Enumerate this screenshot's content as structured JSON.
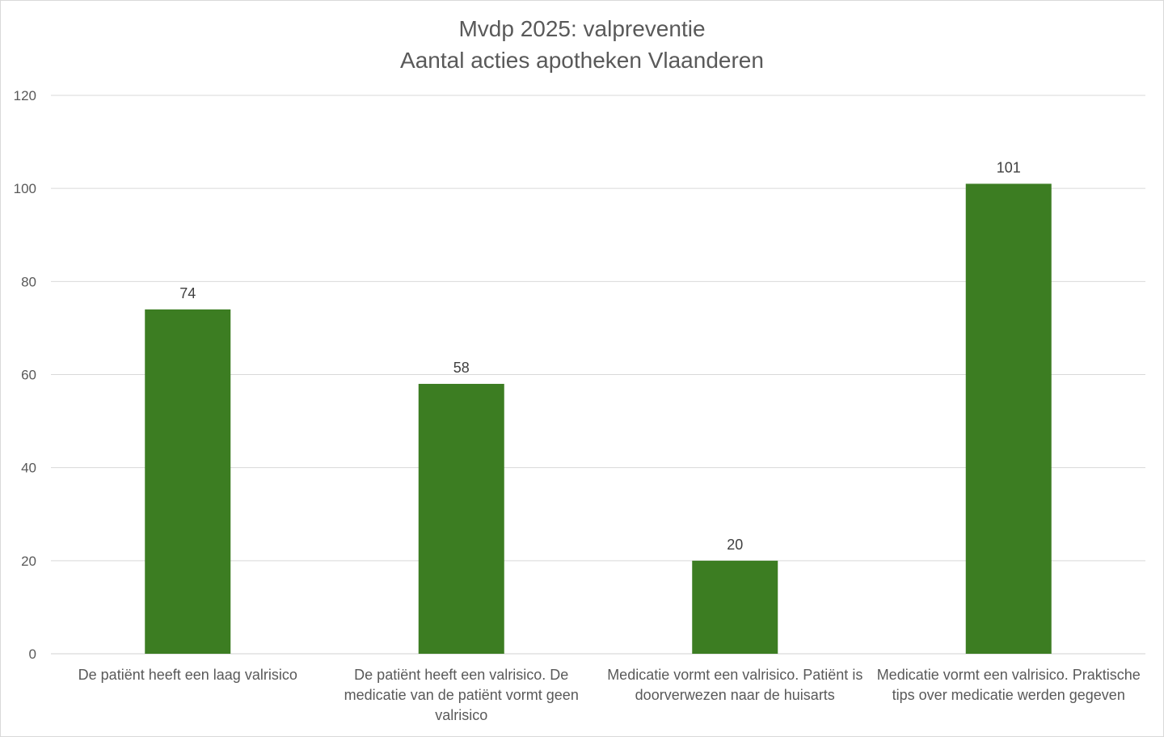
{
  "chart_data": {
    "type": "bar",
    "title": "Mvdp 2025: valpreventie",
    "subtitle": "Aantal acties apotheken Vlaanderen",
    "xlabel": "",
    "ylabel": "",
    "ylim": [
      0,
      120
    ],
    "yticks": [
      0,
      20,
      40,
      60,
      80,
      100,
      120
    ],
    "grid": true,
    "legend": "none",
    "bar_color": "#3c7d22",
    "categories": [
      "De patiënt heeft een laag valrisico",
      "De patiënt heeft een valrisico. De medicatie van de patiënt vormt geen valrisico",
      "Medicatie vormt een valrisico. Patiënt is doorverwezen naar de huisarts",
      "Medicatie vormt een valrisico. Praktische tips over medicatie werden gegeven"
    ],
    "values": [
      74,
      58,
      20,
      101
    ]
  }
}
